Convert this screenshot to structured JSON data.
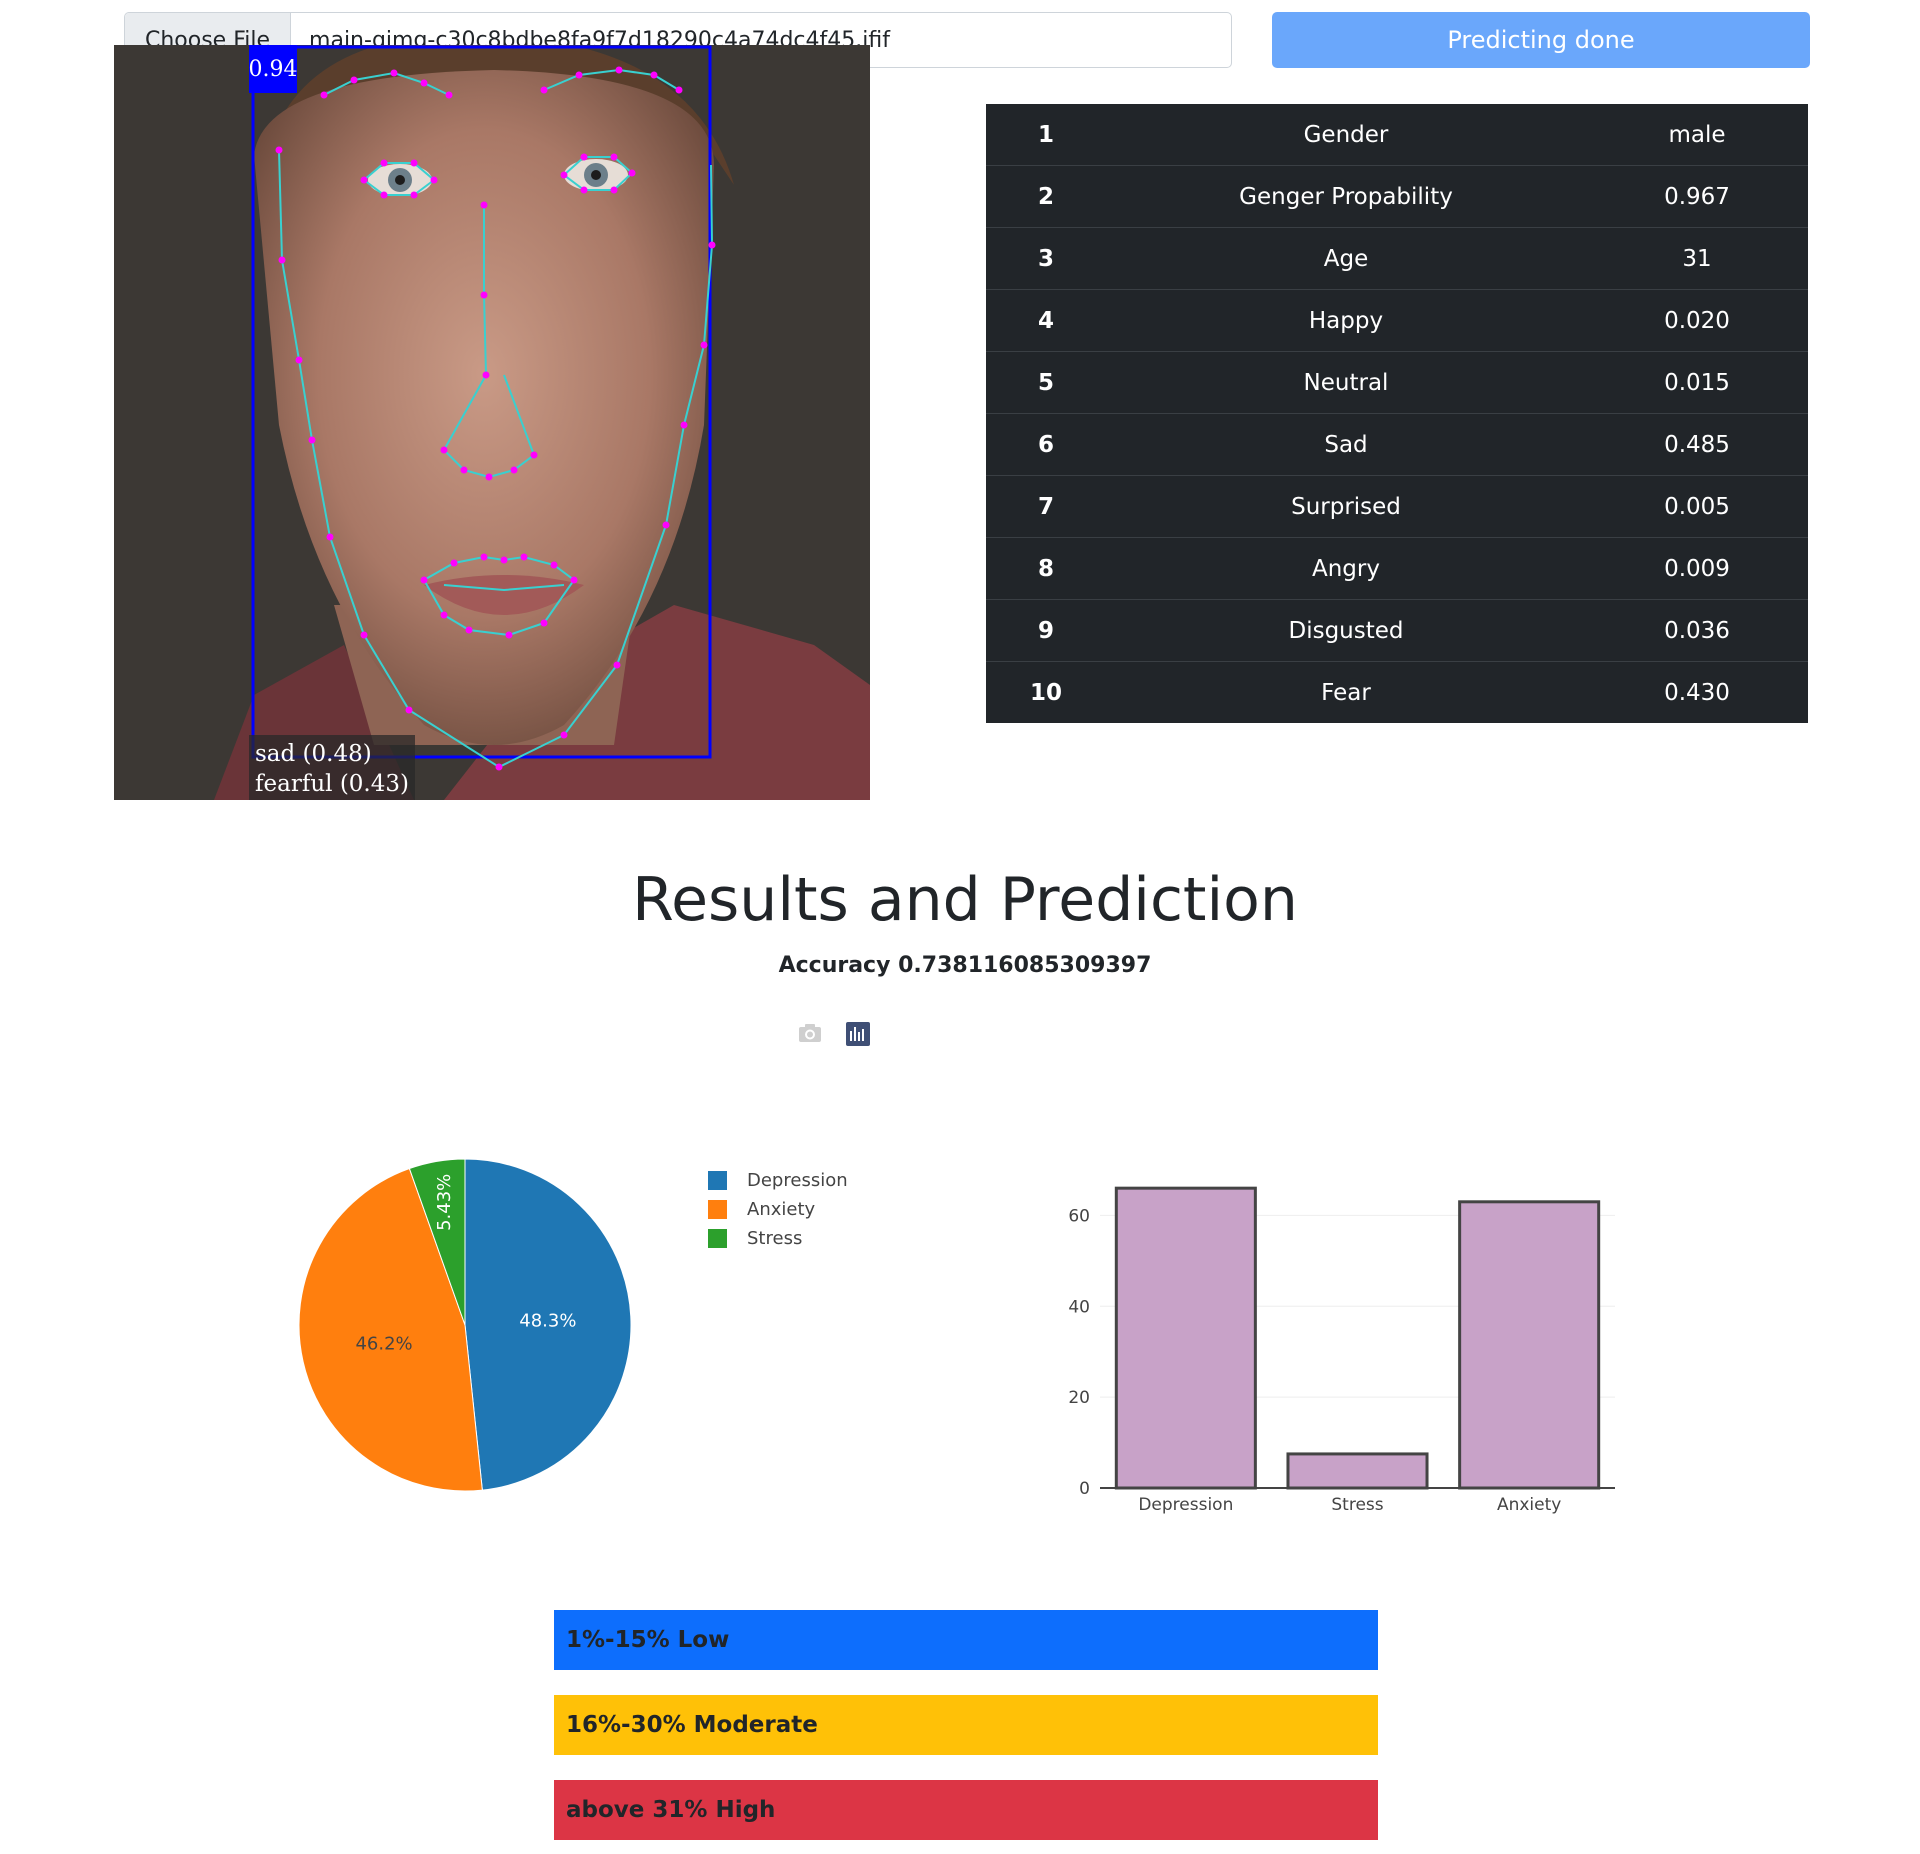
{
  "upload": {
    "choose_file_label": "Choose File",
    "file_name": "main-qimg-c30c8bdbe8fa9f7d18290c4a74dc4f45.jfif"
  },
  "predict_button_label": "Predicting done",
  "face_image": {
    "box_score": "0.94",
    "emotion_labels": [
      "sad (0.48)",
      "fearful (0.43)"
    ]
  },
  "results": [
    {
      "index": "1",
      "name": "Gender",
      "value": "male"
    },
    {
      "index": "2",
      "name": "Genger Propability",
      "value": "0.967"
    },
    {
      "index": "3",
      "name": "Age",
      "value": "31"
    },
    {
      "index": "4",
      "name": "Happy",
      "value": "0.020"
    },
    {
      "index": "5",
      "name": "Neutral",
      "value": "0.015"
    },
    {
      "index": "6",
      "name": "Sad",
      "value": "0.485"
    },
    {
      "index": "7",
      "name": "Surprised",
      "value": "0.005"
    },
    {
      "index": "8",
      "name": "Angry",
      "value": "0.009"
    },
    {
      "index": "9",
      "name": "Disgusted",
      "value": "0.036"
    },
    {
      "index": "10",
      "name": "Fear",
      "value": "0.430"
    }
  ],
  "heading": "Results and Prediction",
  "accuracy_text": "Accuracy 0.738116085309397",
  "modebar_icons": [
    "camera-icon",
    "plotly-logo-icon"
  ],
  "chart_data": [
    {
      "type": "pie",
      "labels": [
        "Depression",
        "Anxiety",
        "Stress"
      ],
      "values": [
        48.3,
        46.2,
        5.43
      ],
      "percent_labels": [
        "48.3%",
        "46.2%",
        "5.43%"
      ],
      "colors": [
        "#1f77b4",
        "#ff7f0e",
        "#2ca02c"
      ],
      "legend": "top-right"
    },
    {
      "type": "bar",
      "categories": [
        "Depression",
        "Stress",
        "Anxiety"
      ],
      "values": [
        66,
        7.5,
        63
      ],
      "ylim": [
        0,
        70
      ],
      "yticks": [
        0,
        20,
        40,
        60
      ],
      "bar_color": "#c8a2c8",
      "bar_outline": "#444444",
      "grid": true
    }
  ],
  "severity_bands": [
    {
      "label": "1%-15% Low",
      "color": "#0d6efd"
    },
    {
      "label": "16%-30% Moderate",
      "color": "#ffc107"
    },
    {
      "label": "above 31% High",
      "color": "#dc3545"
    }
  ]
}
